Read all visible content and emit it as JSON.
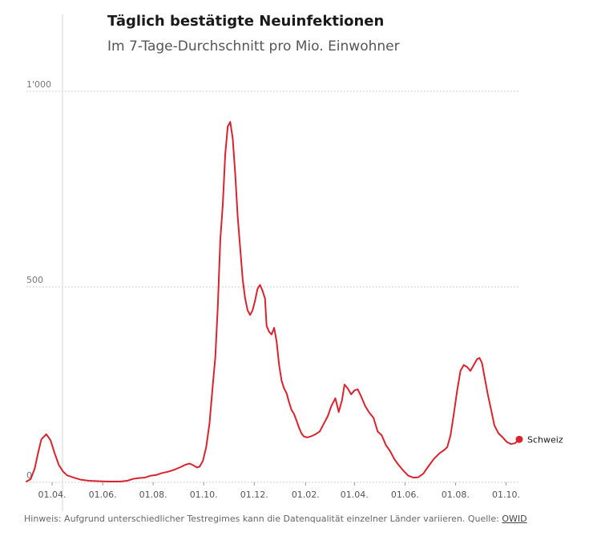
{
  "chart_data": {
    "type": "line",
    "title": "Täglich bestätigte Neuinfektionen",
    "subtitle": "Im 7-Tage-Durchschnitt pro Mio. Einwohner",
    "xlabel": "",
    "ylabel": "",
    "ylim": [
      0,
      1000
    ],
    "y_ticks": [
      {
        "value": 1000,
        "label": "1'000"
      },
      {
        "value": 500,
        "label": "500"
      },
      {
        "value": 0,
        "label": "0"
      }
    ],
    "x_ticks": [
      {
        "date": "2020-04-01",
        "label": "01.04."
      },
      {
        "date": "2020-06-01",
        "label": "01.06."
      },
      {
        "date": "2020-08-01",
        "label": "01.08."
      },
      {
        "date": "2020-10-01",
        "label": "01.10."
      },
      {
        "date": "2020-12-01",
        "label": "01.12."
      },
      {
        "date": "2021-02-01",
        "label": "01.02."
      },
      {
        "date": "2021-04-01",
        "label": "01.04."
      },
      {
        "date": "2021-06-01",
        "label": "01.06."
      },
      {
        "date": "2021-08-01",
        "label": "01.08."
      },
      {
        "date": "2021-10-01",
        "label": "01.10."
      }
    ],
    "xlim": [
      "2020-03-01",
      "2021-10-17"
    ],
    "grid": true,
    "series": [
      {
        "name": "Schweiz",
        "color": "#d9232e",
        "points": [
          [
            "2020-03-01",
            2
          ],
          [
            "2020-03-06",
            8
          ],
          [
            "2020-03-11",
            35
          ],
          [
            "2020-03-15",
            75
          ],
          [
            "2020-03-19",
            110
          ],
          [
            "2020-03-25",
            123
          ],
          [
            "2020-03-30",
            108
          ],
          [
            "2020-04-04",
            75
          ],
          [
            "2020-04-09",
            45
          ],
          [
            "2020-04-14",
            28
          ],
          [
            "2020-04-19",
            18
          ],
          [
            "2020-04-27",
            12
          ],
          [
            "2020-05-05",
            7
          ],
          [
            "2020-05-15",
            4
          ],
          [
            "2020-05-25",
            3
          ],
          [
            "2020-06-08",
            2
          ],
          [
            "2020-06-22",
            2
          ],
          [
            "2020-07-01",
            4
          ],
          [
            "2020-07-08",
            9
          ],
          [
            "2020-07-15",
            11
          ],
          [
            "2020-07-22",
            12
          ],
          [
            "2020-07-29",
            17
          ],
          [
            "2020-08-05",
            19
          ],
          [
            "2020-08-12",
            24
          ],
          [
            "2020-08-19",
            27
          ],
          [
            "2020-08-26",
            32
          ],
          [
            "2020-09-02",
            38
          ],
          [
            "2020-09-09",
            45
          ],
          [
            "2020-09-14",
            48
          ],
          [
            "2020-09-18",
            44
          ],
          [
            "2020-09-23",
            38
          ],
          [
            "2020-09-26",
            40
          ],
          [
            "2020-09-30",
            55
          ],
          [
            "2020-10-04",
            90
          ],
          [
            "2020-10-08",
            150
          ],
          [
            "2020-10-12",
            250
          ],
          [
            "2020-10-15",
            320
          ],
          [
            "2020-10-18",
            450
          ],
          [
            "2020-10-21",
            620
          ],
          [
            "2020-10-24",
            710
          ],
          [
            "2020-10-27",
            840
          ],
          [
            "2020-10-30",
            910
          ],
          [
            "2020-11-02",
            922
          ],
          [
            "2020-11-05",
            880
          ],
          [
            "2020-11-08",
            790
          ],
          [
            "2020-11-11",
            680
          ],
          [
            "2020-11-14",
            600
          ],
          [
            "2020-11-17",
            520
          ],
          [
            "2020-11-20",
            470
          ],
          [
            "2020-11-23",
            440
          ],
          [
            "2020-11-26",
            428
          ],
          [
            "2020-11-29",
            440
          ],
          [
            "2020-12-02",
            465
          ],
          [
            "2020-12-05",
            495
          ],
          [
            "2020-12-08",
            505
          ],
          [
            "2020-12-11",
            490
          ],
          [
            "2020-12-14",
            470
          ],
          [
            "2020-12-16",
            400
          ],
          [
            "2020-12-19",
            385
          ],
          [
            "2020-12-22",
            378
          ],
          [
            "2020-12-25",
            395
          ],
          [
            "2020-12-28",
            360
          ],
          [
            "2020-12-31",
            300
          ],
          [
            "2021-01-03",
            260
          ],
          [
            "2021-01-06",
            240
          ],
          [
            "2021-01-09",
            228
          ],
          [
            "2021-01-12",
            205
          ],
          [
            "2021-01-15",
            185
          ],
          [
            "2021-01-18",
            175
          ],
          [
            "2021-01-21",
            158
          ],
          [
            "2021-01-24",
            140
          ],
          [
            "2021-01-27",
            125
          ],
          [
            "2021-01-30",
            117
          ],
          [
            "2021-02-03",
            115
          ],
          [
            "2021-02-08",
            118
          ],
          [
            "2021-02-13",
            123
          ],
          [
            "2021-02-18",
            130
          ],
          [
            "2021-02-23",
            150
          ],
          [
            "2021-02-28",
            170
          ],
          [
            "2021-03-04",
            195
          ],
          [
            "2021-03-09",
            215
          ],
          [
            "2021-03-13",
            180
          ],
          [
            "2021-03-17",
            210
          ],
          [
            "2021-03-20",
            250
          ],
          [
            "2021-03-24",
            240
          ],
          [
            "2021-03-28",
            225
          ],
          [
            "2021-04-01",
            235
          ],
          [
            "2021-04-05",
            238
          ],
          [
            "2021-04-09",
            220
          ],
          [
            "2021-04-14",
            195
          ],
          [
            "2021-04-19",
            178
          ],
          [
            "2021-04-24",
            165
          ],
          [
            "2021-04-29",
            130
          ],
          [
            "2021-05-04",
            120
          ],
          [
            "2021-05-09",
            95
          ],
          [
            "2021-05-14",
            80
          ],
          [
            "2021-05-19",
            60
          ],
          [
            "2021-05-24",
            45
          ],
          [
            "2021-05-30",
            30
          ],
          [
            "2021-06-05",
            17
          ],
          [
            "2021-06-11",
            12
          ],
          [
            "2021-06-17",
            13
          ],
          [
            "2021-06-23",
            22
          ],
          [
            "2021-06-29",
            40
          ],
          [
            "2021-07-06",
            60
          ],
          [
            "2021-07-13",
            75
          ],
          [
            "2021-07-18",
            82
          ],
          [
            "2021-07-22",
            90
          ],
          [
            "2021-07-26",
            120
          ],
          [
            "2021-07-30",
            175
          ],
          [
            "2021-08-03",
            235
          ],
          [
            "2021-08-07",
            285
          ],
          [
            "2021-08-11",
            300
          ],
          [
            "2021-08-15",
            295
          ],
          [
            "2021-08-19",
            285
          ],
          [
            "2021-08-23",
            300
          ],
          [
            "2021-08-27",
            315
          ],
          [
            "2021-08-30",
            318
          ],
          [
            "2021-09-02",
            305
          ],
          [
            "2021-09-05",
            270
          ],
          [
            "2021-09-09",
            225
          ],
          [
            "2021-09-13",
            185
          ],
          [
            "2021-09-17",
            145
          ],
          [
            "2021-09-22",
            125
          ],
          [
            "2021-09-27",
            115
          ],
          [
            "2021-10-02",
            103
          ],
          [
            "2021-10-07",
            98
          ],
          [
            "2021-10-12",
            100
          ],
          [
            "2021-10-17",
            110
          ]
        ]
      }
    ]
  },
  "footnote": {
    "text": "Hinweis: Aufgrund unterschiedlicher Testregimes kann die Datenqualität einzelner Länder variieren. Quelle: ",
    "source_link": "OWID"
  }
}
